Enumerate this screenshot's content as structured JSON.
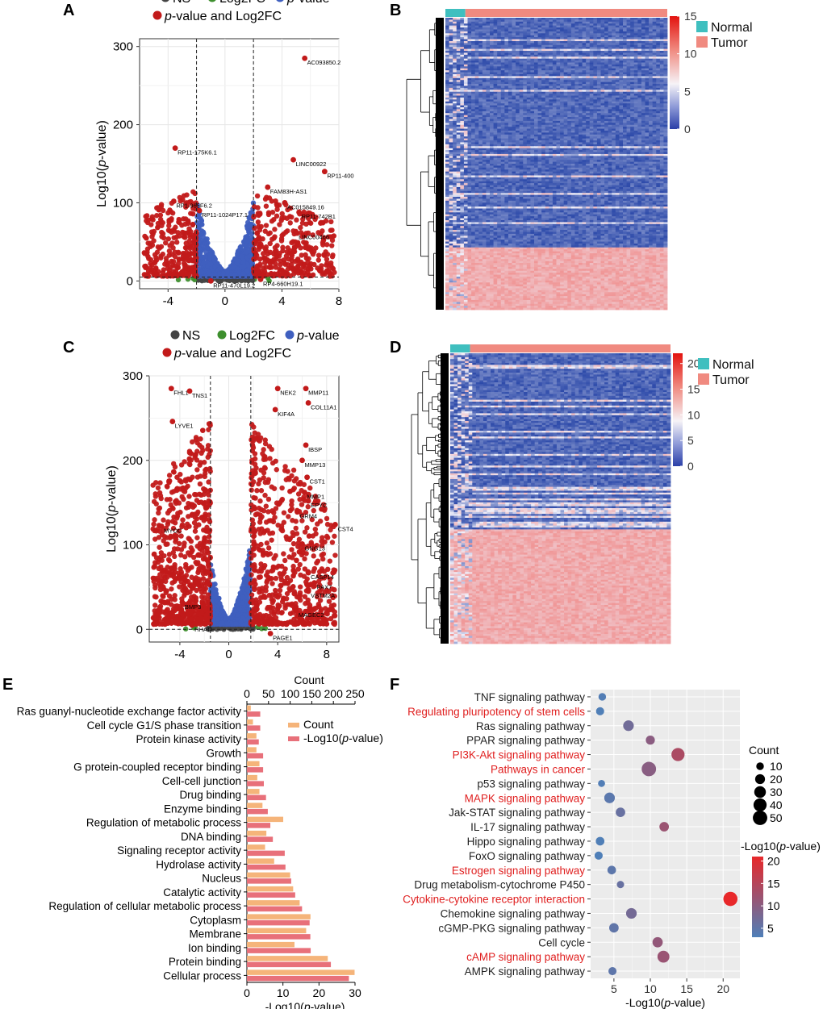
{
  "panels": {
    "A": "A",
    "B": "B",
    "C": "C",
    "D": "D",
    "E": "E",
    "F": "F"
  },
  "chart_data": [
    {
      "panel": "A",
      "type": "scatter",
      "ylabel": "Log10(p-value)",
      "ylabel_parts": [
        "Log10(",
        "p",
        "-value)"
      ],
      "xticks": [
        -4,
        0,
        4,
        8
      ],
      "yticks": [
        0,
        100,
        200,
        300
      ],
      "xlim": [
        -6,
        8
      ],
      "ylim": [
        -10,
        310
      ],
      "thresholds": {
        "x": [
          -2,
          2
        ],
        "y": 5
      },
      "legend": [
        "NS",
        "Log2FC",
        "p-value",
        "p-value and Log2FC"
      ],
      "legend_colors": {
        "NS": "#444444",
        "Log2FC": "#3e8f2e",
        "p-value": "#3f5fbf",
        "p-value and Log2FC": "#c21a1a"
      },
      "labeled_points": [
        {
          "label": "AC093850.2",
          "x": 5.6,
          "y": 285
        },
        {
          "label": "RP11-175K6.1",
          "x": -3.5,
          "y": 170
        },
        {
          "label": "LINC00922",
          "x": 4.8,
          "y": 155
        },
        {
          "label": "RP11-400",
          "x": 7.0,
          "y": 140
        },
        {
          "label": "FAM83H-AS1",
          "x": 3.0,
          "y": 120
        },
        {
          "label": "RP1-965F6.2",
          "x": -3.6,
          "y": 102
        },
        {
          "label": "RP11-1024P17.1",
          "x": -1.8,
          "y": 90
        },
        {
          "label": "AC015849.16",
          "x": 4.2,
          "y": 100
        },
        {
          "label": "RP11-742B1",
          "x": 5.2,
          "y": 88
        },
        {
          "label": "LINC00466",
          "x": 5.0,
          "y": 62
        },
        {
          "label": "RP4-660H19.1",
          "x": 2.5,
          "y": 2
        },
        {
          "label": "RP11-470L19.2",
          "x": -1.0,
          "y": 0
        }
      ]
    },
    {
      "panel": "B",
      "type": "heatmap",
      "legend": [
        "Normal",
        "Tumor"
      ],
      "legend_colors": {
        "Normal": "#3fbfbf",
        "Tumor": "#f08a80"
      },
      "colorbar_ticks": [
        0,
        5,
        10,
        15
      ],
      "colorbar_range": [
        0,
        15
      ]
    },
    {
      "panel": "C",
      "type": "scatter",
      "ylabel": "Log10(p-value)",
      "ylabel_parts": [
        "Log10(",
        "p",
        "-value)"
      ],
      "xticks": [
        -4,
        0,
        4,
        8
      ],
      "yticks": [
        0,
        100,
        200,
        300
      ],
      "xlim": [
        -6.5,
        9
      ],
      "ylim": [
        -15,
        300
      ],
      "thresholds": {
        "x": [
          -1.5,
          1.8
        ],
        "y": 0
      },
      "legend": [
        "NS",
        "Log2FC",
        "p-value",
        "p-value and Log2FC"
      ],
      "legend_colors": {
        "NS": "#444444",
        "Log2FC": "#3e8f2e",
        "p-value": "#3f5fbf",
        "p-value and Log2FC": "#c21a1a"
      },
      "labeled_points": [
        {
          "label": "FHL1",
          "x": -4.7,
          "y": 285
        },
        {
          "label": "TNS1",
          "x": -3.2,
          "y": 282
        },
        {
          "label": "NEK2",
          "x": 4.0,
          "y": 285
        },
        {
          "label": "MMP11",
          "x": 6.3,
          "y": 285
        },
        {
          "label": "COL11A1",
          "x": 6.5,
          "y": 268
        },
        {
          "label": "KIF4A",
          "x": 3.8,
          "y": 260
        },
        {
          "label": "LYVE1",
          "x": -4.6,
          "y": 246
        },
        {
          "label": "IBSP",
          "x": 6.3,
          "y": 218
        },
        {
          "label": "MMP13",
          "x": 6.0,
          "y": 200
        },
        {
          "label": "CST1",
          "x": 6.4,
          "y": 180
        },
        {
          "label": "MMP1",
          "x": 6.2,
          "y": 162
        },
        {
          "label": "EPYC",
          "x": 6.5,
          "y": 152
        },
        {
          "label": "GRM4",
          "x": 5.6,
          "y": 139
        },
        {
          "label": "CST4",
          "x": 8.7,
          "y": 124
        },
        {
          "label": "GNG13",
          "x": 6.0,
          "y": 101
        },
        {
          "label": "CASP14",
          "x": 6.5,
          "y": 67
        },
        {
          "label": "PAX7",
          "x": 7.0,
          "y": 55
        },
        {
          "label": "VSTM2A",
          "x": 6.5,
          "y": 45
        },
        {
          "label": "MAGEC2",
          "x": 5.5,
          "y": 22
        },
        {
          "label": "PAGE1",
          "x": 3.4,
          "y": -5
        },
        {
          "label": "MYOC",
          "x": -5.5,
          "y": 122
        },
        {
          "label": "BMP3",
          "x": -3.8,
          "y": 32
        },
        {
          "label": "HHATL",
          "x": -3.0,
          "y": 5
        }
      ]
    },
    {
      "panel": "D",
      "type": "heatmap",
      "legend": [
        "Normal",
        "Tumor"
      ],
      "legend_colors": {
        "Normal": "#3fbfbf",
        "Tumor": "#f08a80"
      },
      "colorbar_ticks": [
        0,
        5,
        10,
        15,
        20
      ],
      "colorbar_range": [
        0,
        22
      ]
    },
    {
      "panel": "E",
      "type": "bar",
      "orientation": "horizontal",
      "top_axis_label": "Count",
      "top_axis_ticks": [
        0,
        50,
        100,
        150,
        200,
        250
      ],
      "top_axis_range": [
        0,
        250
      ],
      "bottom_axis_label": "-Log10(p-value)",
      "bottom_axis_label_parts": [
        "-Log10(",
        "p",
        "-value)"
      ],
      "bottom_axis_ticks": [
        0,
        10,
        20,
        30
      ],
      "bottom_axis_range": [
        0,
        30
      ],
      "series_names": [
        "Count",
        "-Log10(p-value)"
      ],
      "legend_parts": [
        "-Log10(",
        "p",
        "-value)"
      ],
      "series_colors": [
        "#f5b47a",
        "#e8707a"
      ],
      "categories": [
        "Ras guanyl-nucleotide exchange factor activity",
        "Cell cycle G1/S phase transition",
        "Protein kinase activity",
        "Growth",
        "G protein-coupled receptor binding",
        "Cell-cell junction",
        "Drug binding",
        "Enzyme binding",
        "Regulation of metabolic process",
        "DNA binding",
        "Signaling receptor activity",
        "Hydrolase activity",
        "Nucleus",
        "Catalytic activity",
        "Regulation of cellular metabolic process",
        "Cytoplasm",
        "Membrane",
        "Ion binding",
        "Protein binding",
        "Cellular process"
      ],
      "count": [
        9,
        14,
        22,
        22,
        29,
        24,
        29,
        36,
        84,
        45,
        42,
        63,
        100,
        107,
        122,
        147,
        137,
        110,
        187,
        249
      ],
      "neglog10p": [
        3.7,
        3.7,
        3.3,
        4.5,
        4.5,
        4.7,
        5.3,
        5.8,
        6.5,
        7.2,
        10.5,
        10.7,
        12.3,
        13.4,
        15.3,
        17.4,
        17.6,
        17.7,
        23.3,
        28.3
      ]
    },
    {
      "panel": "F",
      "type": "scatter",
      "subtype": "bubble",
      "xlabel": "-Log10(p-value)",
      "xlabel_parts": [
        "-Log10(",
        "p",
        "-value)"
      ],
      "xticks": [
        5,
        10,
        15,
        20
      ],
      "xlim": [
        1.8,
        22.3
      ],
      "size_legend_title": "Count",
      "size_legend_values": [
        10,
        20,
        30,
        40,
        50
      ],
      "color_legend_title": "-Log10(p-value)",
      "color_legend_title_parts": [
        "-Log10(",
        "p",
        "-value)"
      ],
      "color_legend_ticks": [
        5,
        10,
        15,
        20
      ],
      "color_range": [
        3,
        21
      ],
      "color_low": "#4f7fb8",
      "color_high": "#e8282a",
      "highlight_color": "#e02020",
      "pathways": [
        {
          "name": "TNF signaling pathway",
          "x": 3.4,
          "count": 10,
          "highlight": false
        },
        {
          "name": "Regulating pluripotency of stem cells",
          "x": 3.1,
          "count": 12,
          "highlight": true
        },
        {
          "name": "Ras signaling pathway",
          "x": 7.0,
          "count": 24,
          "highlight": false
        },
        {
          "name": "PPAR signaling pathway",
          "x": 10.0,
          "count": 16,
          "highlight": false
        },
        {
          "name": "PI3K-Akt signaling pathway",
          "x": 13.8,
          "count": 40,
          "highlight": true
        },
        {
          "name": "Pathways in cancer",
          "x": 9.8,
          "count": 50,
          "highlight": true
        },
        {
          "name": "p53 signaling pathway",
          "x": 3.3,
          "count": 8,
          "highlight": false
        },
        {
          "name": "MAPK signaling pathway",
          "x": 4.4,
          "count": 24,
          "highlight": true
        },
        {
          "name": "Jak-STAT signaling pathway",
          "x": 5.9,
          "count": 18,
          "highlight": false
        },
        {
          "name": "IL-17 signaling pathway",
          "x": 11.9,
          "count": 18,
          "highlight": false
        },
        {
          "name": "Hippo signaling pathway",
          "x": 3.1,
          "count": 14,
          "highlight": false
        },
        {
          "name": "FoxO signaling pathway",
          "x": 2.9,
          "count": 12,
          "highlight": false
        },
        {
          "name": "Estrogen signaling pathway",
          "x": 4.7,
          "count": 14,
          "highlight": true
        },
        {
          "name": "Drug metabolism-cytochrome P450",
          "x": 5.9,
          "count": 9,
          "highlight": false
        },
        {
          "name": "Cytokine-cytokine receptor interaction",
          "x": 21.0,
          "count": 48,
          "highlight": true
        },
        {
          "name": "Chemokine signaling pathway",
          "x": 7.4,
          "count": 24,
          "highlight": false
        },
        {
          "name": "cGMP-PKG signaling pathway",
          "x": 5.0,
          "count": 18,
          "highlight": false
        },
        {
          "name": "Cell cycle",
          "x": 11.0,
          "count": 22,
          "highlight": false
        },
        {
          "name": "cAMP signaling pathway",
          "x": 11.8,
          "count": 32,
          "highlight": true
        },
        {
          "name": "AMPK signaling pathway",
          "x": 4.8,
          "count": 12,
          "highlight": false
        }
      ]
    }
  ]
}
